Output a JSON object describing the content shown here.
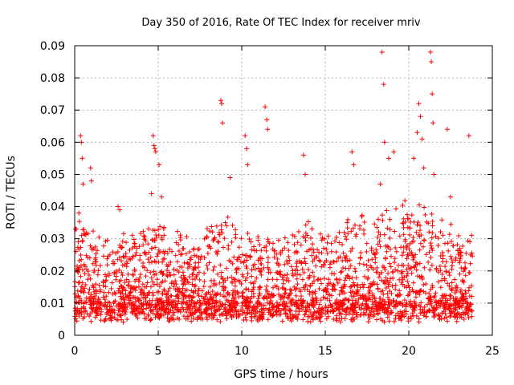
{
  "chart_data": {
    "type": "scatter",
    "title": "Day 350 of 2016, Rate Of TEC Index for receiver mriv",
    "xlabel": "GPS time / hours",
    "ylabel": "ROTI / TECUs",
    "xlim": [
      0,
      25
    ],
    "ylim": [
      0,
      0.09
    ],
    "xticks": [
      0,
      5,
      10,
      15,
      20,
      25
    ],
    "xtick_labels": [
      "0",
      "5",
      "10",
      "15",
      "20",
      "25"
    ],
    "yticks": [
      0,
      0.01,
      0.02,
      0.03,
      0.04,
      0.05,
      0.06,
      0.07,
      0.08,
      0.09
    ],
    "ytick_labels": [
      "0",
      "0.01",
      "0.02",
      "0.03",
      "0.04",
      "0.05",
      "0.06",
      "0.07",
      "0.08",
      "0.09"
    ],
    "grid": true,
    "marker": "+",
    "marker_color": "#ff0000",
    "data_range_x": [
      0,
      23.8
    ],
    "series": [
      {
        "name": "ROTI",
        "x": [
          0.05,
          0.25,
          0.35,
          0.4,
          0.45,
          0.5,
          0.95,
          1.0,
          2.6,
          2.7,
          4.6,
          4.7,
          4.75,
          4.8,
          4.85,
          5.05,
          5.2,
          8.75,
          8.8,
          8.85,
          9.3,
          10.2,
          10.3,
          10.35,
          11.4,
          11.5,
          11.55,
          13.7,
          13.8,
          16.6,
          16.7,
          18.3,
          18.4,
          18.5,
          18.55,
          18.8,
          19.1,
          20.3,
          20.5,
          20.6,
          20.7,
          20.8,
          20.9,
          21.3,
          21.35,
          21.4,
          21.45,
          21.5,
          22.3,
          22.5,
          23.6,
          23.7
        ],
        "y": [
          0.033,
          0.038,
          0.062,
          0.06,
          0.055,
          0.047,
          0.052,
          0.048,
          0.04,
          0.039,
          0.044,
          0.062,
          0.059,
          0.058,
          0.057,
          0.053,
          0.043,
          0.073,
          0.072,
          0.066,
          0.049,
          0.062,
          0.058,
          0.053,
          0.071,
          0.067,
          0.064,
          0.056,
          0.05,
          0.057,
          0.053,
          0.047,
          0.088,
          0.078,
          0.06,
          0.055,
          0.057,
          0.055,
          0.063,
          0.072,
          0.068,
          0.061,
          0.052,
          0.088,
          0.085,
          0.075,
          0.066,
          0.05,
          0.064,
          0.043,
          0.062,
          0.025
        ]
      }
    ]
  }
}
